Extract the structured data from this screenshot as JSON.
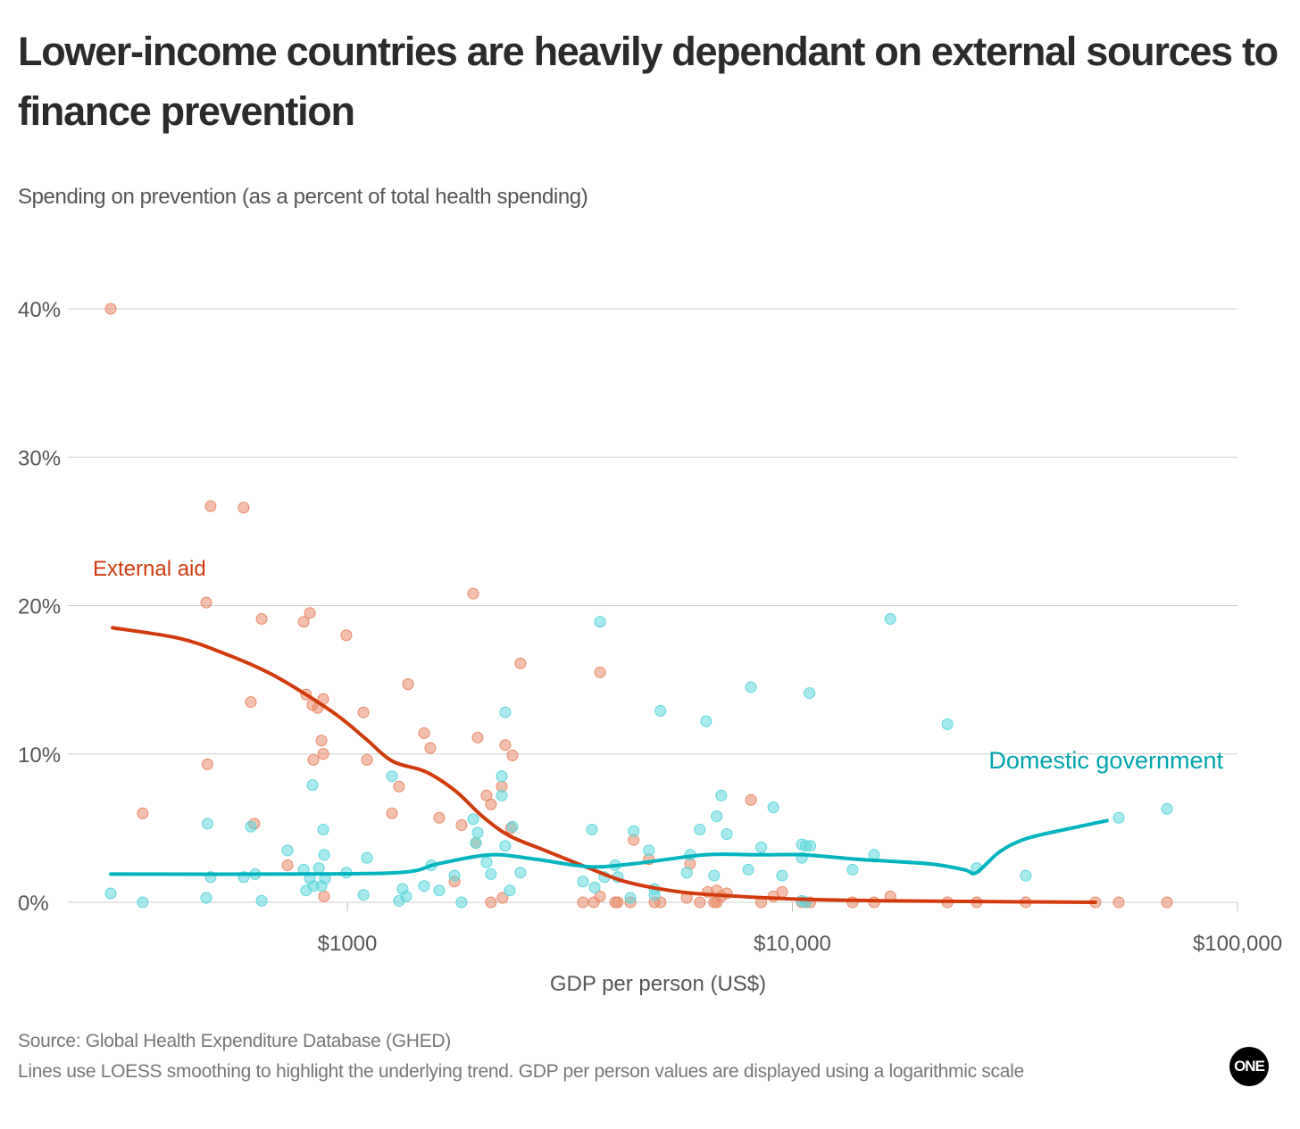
{
  "chart_data": {
    "type": "scatter",
    "title": "Lower-income countries are heavily dependant on external sources to finance prevention",
    "subtitle": "Spending on prevention (as a percent of total health spending)",
    "xlabel": "GDP per person (US$)",
    "ylabel": "",
    "x_scale": "log",
    "xlim": [
      250,
      100000
    ],
    "ylim": [
      0,
      40
    ],
    "x_ticks": [
      {
        "value": 1000,
        "label": "$1000"
      },
      {
        "value": 10000,
        "label": "$10,000"
      },
      {
        "value": 100000,
        "label": "$100,000"
      }
    ],
    "y_ticks": [
      {
        "value": 0,
        "label": "0%"
      },
      {
        "value": 10,
        "label": "10%"
      },
      {
        "value": 20,
        "label": "20%"
      },
      {
        "value": 30,
        "label": "30%"
      },
      {
        "value": 40,
        "label": "40%"
      }
    ],
    "grid": "horizontal",
    "series": [
      {
        "name": "External aid",
        "color": "#d13a0c",
        "point_color": "#e98a68",
        "points": [
          [
            294,
            40.0
          ],
          [
            347,
            6.0
          ],
          [
            493,
            26.7
          ],
          [
            585,
            26.6
          ],
          [
            482,
            20.2
          ],
          [
            642,
            19.1
          ],
          [
            485,
            9.3
          ],
          [
            607,
            13.5
          ],
          [
            618,
            5.3
          ],
          [
            798,
            18.9
          ],
          [
            824,
            19.5
          ],
          [
            995,
            18.0
          ],
          [
            808,
            14.0
          ],
          [
            835,
            13.3
          ],
          [
            858,
            13.1
          ],
          [
            883,
            13.7
          ],
          [
            875,
            10.9
          ],
          [
            883,
            10.0
          ],
          [
            839,
            9.6
          ],
          [
            734,
            2.5
          ],
          [
            887,
            0.4
          ],
          [
            1087,
            12.8
          ],
          [
            1107,
            9.6
          ],
          [
            1369,
            14.7
          ],
          [
            1307,
            7.8
          ],
          [
            1260,
            6.0
          ],
          [
            1488,
            11.4
          ],
          [
            1536,
            10.4
          ],
          [
            1609,
            5.7
          ],
          [
            1918,
            20.8
          ],
          [
            1963,
            11.1
          ],
          [
            1806,
            5.2
          ],
          [
            1741,
            1.4
          ],
          [
            2055,
            7.2
          ],
          [
            2102,
            6.6
          ],
          [
            2223,
            7.8
          ],
          [
            2264,
            10.6
          ],
          [
            2350,
            9.9
          ],
          [
            2449,
            16.1
          ],
          [
            2330,
            5.0
          ],
          [
            1944,
            4.0
          ],
          [
            2232,
            0.3
          ],
          [
            2102,
            0
          ],
          [
            3697,
            15.5
          ],
          [
            3384,
            0
          ],
          [
            3580,
            0
          ],
          [
            3697,
            0.4
          ],
          [
            4000,
            0
          ],
          [
            4050,
            0
          ],
          [
            4325,
            0
          ],
          [
            4400,
            4.2
          ],
          [
            4760,
            2.9
          ],
          [
            4900,
            0
          ],
          [
            5055,
            0
          ],
          [
            5890,
            2.6
          ],
          [
            5790,
            0.3
          ],
          [
            6195,
            0
          ],
          [
            6455,
            0.7
          ],
          [
            6670,
            0
          ],
          [
            6760,
            0.8
          ],
          [
            6920,
            0.4
          ],
          [
            7120,
            0.6
          ],
          [
            6760,
            0
          ],
          [
            8070,
            6.9
          ],
          [
            8510,
            0
          ],
          [
            9060,
            0.4
          ],
          [
            9480,
            0.7
          ],
          [
            10500,
            0
          ],
          [
            10720,
            0
          ],
          [
            10970,
            0
          ],
          [
            13650,
            0
          ],
          [
            15260,
            0
          ],
          [
            16600,
            0.4
          ],
          [
            22300,
            0
          ],
          [
            25940,
            0
          ],
          [
            33450,
            0
          ],
          [
            47950,
            0
          ],
          [
            54090,
            0
          ],
          [
            69430,
            0
          ]
        ],
        "trend": [
          [
            297,
            18.5
          ],
          [
            418,
            17.8
          ],
          [
            526,
            16.8
          ],
          [
            663,
            15.5
          ],
          [
            798,
            14.1
          ],
          [
            959,
            12.5
          ],
          [
            1102,
            11.0
          ],
          [
            1265,
            9.5
          ],
          [
            1500,
            8.8
          ],
          [
            1750,
            7.5
          ],
          [
            2010,
            5.8
          ],
          [
            2308,
            4.5
          ],
          [
            2777,
            3.5
          ],
          [
            3494,
            2.3
          ],
          [
            4205,
            1.4
          ],
          [
            5300,
            0.8
          ],
          [
            6670,
            0.5
          ],
          [
            10600,
            0.2
          ],
          [
            16770,
            0.1
          ],
          [
            26700,
            0.05
          ],
          [
            47950,
            0.0
          ]
        ]
      },
      {
        "name": "Domestic government",
        "color": "#00b4bf",
        "point_color": "#5fd7dd",
        "points": [
          [
            294,
            0.6
          ],
          [
            347,
            0
          ],
          [
            485,
            5.3
          ],
          [
            493,
            1.7
          ],
          [
            482,
            0.3
          ],
          [
            585,
            1.7
          ],
          [
            607,
            5.1
          ],
          [
            621,
            1.9
          ],
          [
            642,
            0.1
          ],
          [
            734,
            3.5
          ],
          [
            798,
            2.2
          ],
          [
            824,
            1.6
          ],
          [
            808,
            0.8
          ],
          [
            835,
            7.9
          ],
          [
            839,
            1.1
          ],
          [
            863,
            2.3
          ],
          [
            883,
            4.9
          ],
          [
            887,
            3.2
          ],
          [
            875,
            1.1
          ],
          [
            891,
            1.6
          ],
          [
            995,
            2.0
          ],
          [
            1087,
            0.5
          ],
          [
            1107,
            3.0
          ],
          [
            1260,
            8.5
          ],
          [
            1307,
            0.1
          ],
          [
            1331,
            0.9
          ],
          [
            1356,
            0.4
          ],
          [
            1488,
            1.1
          ],
          [
            1544,
            2.5
          ],
          [
            1609,
            0.8
          ],
          [
            1741,
            1.8
          ],
          [
            1806,
            0
          ],
          [
            1918,
            5.6
          ],
          [
            1963,
            4.7
          ],
          [
            1944,
            4.0
          ],
          [
            2055,
            2.7
          ],
          [
            2102,
            1.9
          ],
          [
            2223,
            7.2
          ],
          [
            2223,
            8.5
          ],
          [
            2264,
            12.8
          ],
          [
            2264,
            3.8
          ],
          [
            2318,
            0.8
          ],
          [
            2350,
            5.1
          ],
          [
            2449,
            2.0
          ],
          [
            3697,
            18.9
          ],
          [
            3384,
            1.4
          ],
          [
            3545,
            4.9
          ],
          [
            3595,
            1.0
          ],
          [
            3782,
            1.7
          ],
          [
            4000,
            2.5
          ],
          [
            4050,
            1.7
          ],
          [
            4325,
            0.3
          ],
          [
            4400,
            4.8
          ],
          [
            4760,
            3.5
          ],
          [
            4900,
            0.9
          ],
          [
            4900,
            0.5
          ],
          [
            5055,
            12.9
          ],
          [
            5790,
            2.0
          ],
          [
            5890,
            3.2
          ],
          [
            6195,
            4.9
          ],
          [
            6400,
            12.2
          ],
          [
            6670,
            1.8
          ],
          [
            6760,
            5.8
          ],
          [
            6920,
            7.2
          ],
          [
            7120,
            4.6
          ],
          [
            8070,
            14.5
          ],
          [
            7960,
            2.2
          ],
          [
            8510,
            3.7
          ],
          [
            9060,
            6.4
          ],
          [
            9480,
            1.8
          ],
          [
            10500,
            3.9
          ],
          [
            10500,
            3.0
          ],
          [
            10720,
            3.8
          ],
          [
            10970,
            3.8
          ],
          [
            10920,
            14.1
          ],
          [
            10500,
            0.1
          ],
          [
            10720,
            0
          ],
          [
            13650,
            2.2
          ],
          [
            15260,
            3.2
          ],
          [
            16600,
            19.1
          ],
          [
            22300,
            12.0
          ],
          [
            25940,
            2.3
          ],
          [
            33450,
            1.8
          ],
          [
            54090,
            5.7
          ],
          [
            69430,
            6.3
          ]
        ],
        "trend": [
          [
            294,
            1.9
          ],
          [
            663,
            1.9
          ],
          [
            1300,
            2.0
          ],
          [
            1600,
            2.6
          ],
          [
            2100,
            3.2
          ],
          [
            2650,
            2.9
          ],
          [
            3490,
            2.4
          ],
          [
            4400,
            2.6
          ],
          [
            6360,
            3.2
          ],
          [
            8420,
            3.2
          ],
          [
            10600,
            3.2
          ],
          [
            13950,
            2.9
          ],
          [
            20200,
            2.6
          ],
          [
            24300,
            2.2
          ],
          [
            25900,
            2.0
          ],
          [
            29200,
            3.4
          ],
          [
            33600,
            4.3
          ],
          [
            42400,
            5.0
          ],
          [
            50900,
            5.5
          ]
        ]
      }
    ]
  },
  "footer": {
    "source": "Source: Global Health Expenditure Database (GHED)",
    "note": "Lines use LOESS smoothing to highlight the underlying trend. GDP per person values are displayed using a logarithmic scale"
  },
  "logo": "ONE"
}
